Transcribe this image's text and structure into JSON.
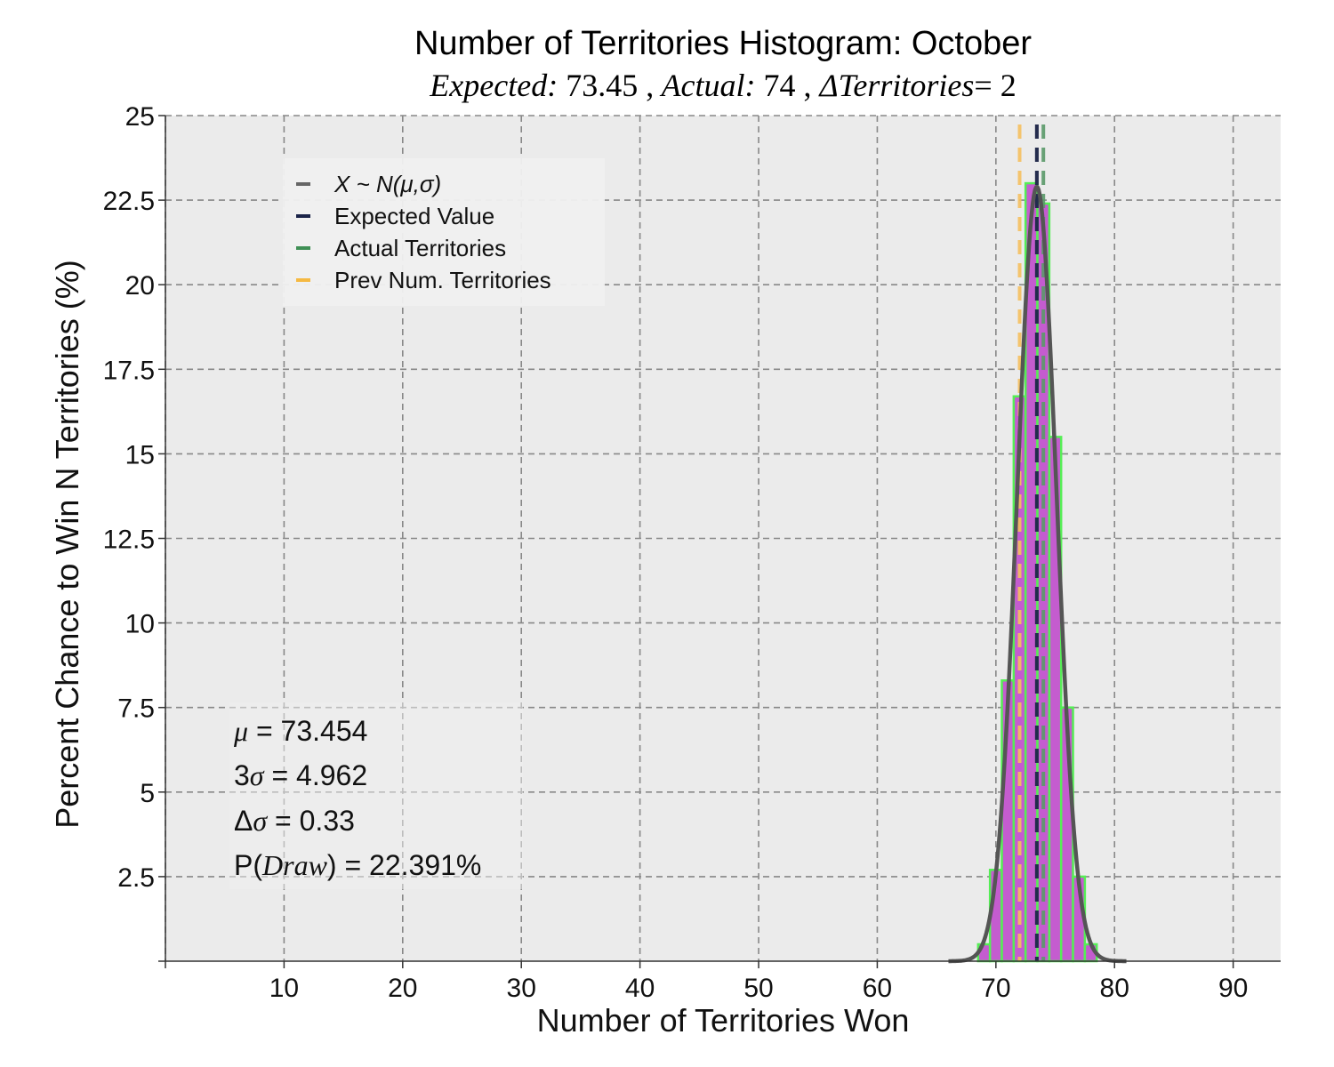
{
  "chart_data": {
    "type": "bar",
    "title": "Number of Territories Histogram: October",
    "subtitle": {
      "expected_label": "Expected:",
      "expected_value": "73.45",
      "actual_label": "Actual:",
      "actual_value": "74",
      "delta_label": "ΔTerritories",
      "delta_value": "= 2",
      "separator": ","
    },
    "xlabel": "Number of Territories Won",
    "ylabel": "Percent Chance to Win N Territories (%)",
    "xlim": [
      0,
      94
    ],
    "ylim": [
      0,
      25
    ],
    "xticks": [
      10,
      20,
      30,
      40,
      50,
      60,
      70,
      80,
      90
    ],
    "xtick_labels": [
      "10",
      "20",
      "30",
      "40",
      "50",
      "60",
      "70",
      "80",
      "90"
    ],
    "yticks": [
      2.5,
      5,
      7.5,
      10,
      12.5,
      15,
      17.5,
      20,
      22.5,
      25
    ],
    "ytick_labels": [
      "2.5",
      "5",
      "7.5",
      "10",
      "12.5",
      "15",
      "17.5",
      "20",
      "22.5",
      "25"
    ],
    "grid": true,
    "bars": {
      "x": [
        69,
        70,
        71,
        72,
        73,
        74,
        75,
        76,
        77,
        78
      ],
      "values": [
        0.5,
        2.7,
        8.3,
        16.7,
        23.0,
        22.4,
        15.5,
        7.5,
        2.5,
        0.5
      ],
      "fill_color": "#c45ccf",
      "edge_color": "#55ee55"
    },
    "normal_curve": {
      "mu": 73.454,
      "sigma": 1.654,
      "peak": 22.9,
      "color": "#555555"
    },
    "vlines": [
      {
        "name": "X ~ N(μ,σ)",
        "x": 73.454,
        "color": "#777777"
      },
      {
        "name": "Expected Value",
        "x": 73.45,
        "color": "#1a2348"
      },
      {
        "name": "Actual Territories",
        "x": 74,
        "color": "#5a9a6a"
      },
      {
        "name": "Prev Num. Territories",
        "x": 72,
        "color": "#f5c060"
      }
    ],
    "legend": {
      "placement": "upper-left",
      "entries": [
        {
          "label": "X ~ N(μ,σ)",
          "color": "#666666",
          "italic": true
        },
        {
          "label": "Expected Value",
          "color": "#1a2348",
          "italic": false
        },
        {
          "label": "Actual Territories",
          "color": "#3f8f55",
          "italic": false
        },
        {
          "label": "Prev Num. Territories",
          "color": "#f5b942",
          "italic": false
        }
      ]
    },
    "stats": {
      "mu_symbol": "μ",
      "mu_value": "= 73.454",
      "three_sigma_prefix": "3",
      "sigma_symbol": "σ",
      "three_sigma_value": "= 4.962",
      "delta_prefix": "Δ",
      "delta_sigma_value": "= 0.33",
      "p_prefix": "P(",
      "draw_word": "Draw",
      "p_suffix": ")",
      "p_value": "= 22.391%"
    },
    "colors": {
      "plot_bg": "#ebebeb",
      "grid": "#888888"
    }
  }
}
